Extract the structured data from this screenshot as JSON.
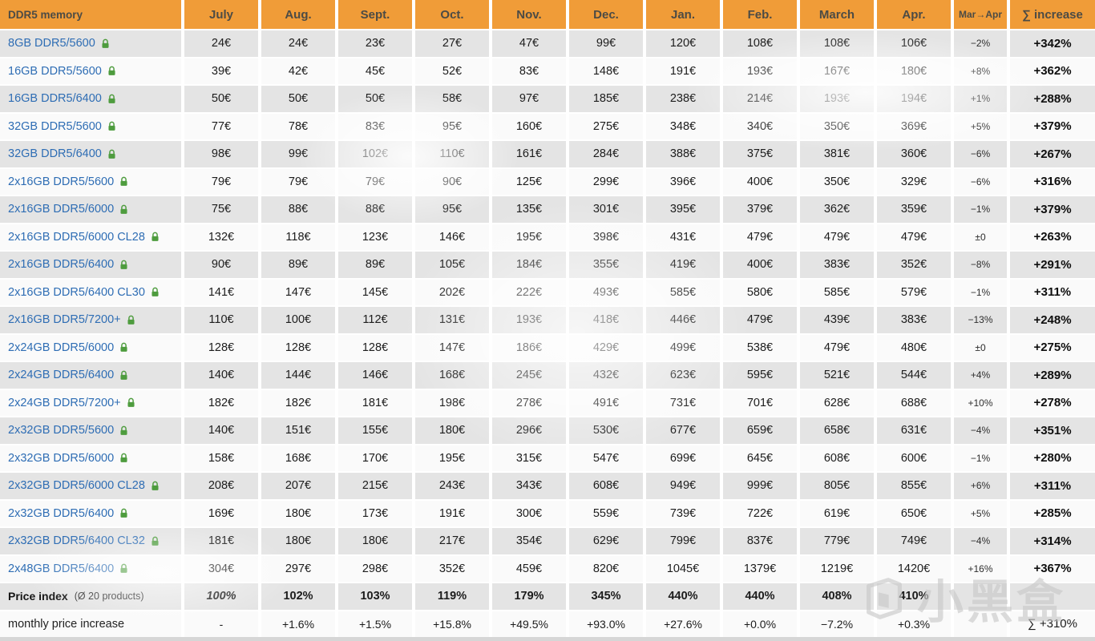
{
  "chart_data": {
    "type": "table",
    "first_column_header": "DDR5 memory",
    "months": [
      "July",
      "Aug.",
      "Sept.",
      "Oct.",
      "Nov.",
      "Dec.",
      "Jan.",
      "Feb.",
      "March",
      "Apr."
    ],
    "change_column_header": "Mar→Apr",
    "sum_column_header": "∑ increase",
    "products": [
      {
        "name": "8GB DDR5/5600",
        "prices": [
          "24€",
          "24€",
          "23€",
          "27€",
          "47€",
          "99€",
          "120€",
          "108€",
          "108€",
          "106€"
        ],
        "mar_apr": "−2%",
        "sum_increase": "+342%"
      },
      {
        "name": "16GB DDR5/5600",
        "prices": [
          "39€",
          "42€",
          "45€",
          "52€",
          "83€",
          "148€",
          "191€",
          "193€",
          "167€",
          "180€"
        ],
        "mar_apr": "+8%",
        "sum_increase": "+362%"
      },
      {
        "name": "16GB DDR5/6400",
        "prices": [
          "50€",
          "50€",
          "50€",
          "58€",
          "97€",
          "185€",
          "238€",
          "214€",
          "193€",
          "194€"
        ],
        "mar_apr": "+1%",
        "sum_increase": "+288%"
      },
      {
        "name": "32GB DDR5/5600",
        "prices": [
          "77€",
          "78€",
          "83€",
          "95€",
          "160€",
          "275€",
          "348€",
          "340€",
          "350€",
          "369€"
        ],
        "mar_apr": "+5%",
        "sum_increase": "+379%"
      },
      {
        "name": "32GB DDR5/6400",
        "prices": [
          "98€",
          "99€",
          "102€",
          "110€",
          "161€",
          "284€",
          "388€",
          "375€",
          "381€",
          "360€"
        ],
        "mar_apr": "−6%",
        "sum_increase": "+267%"
      },
      {
        "name": "2x16GB DDR5/5600",
        "prices": [
          "79€",
          "79€",
          "79€",
          "90€",
          "125€",
          "299€",
          "396€",
          "400€",
          "350€",
          "329€"
        ],
        "mar_apr": "−6%",
        "sum_increase": "+316%"
      },
      {
        "name": "2x16GB DDR5/6000",
        "prices": [
          "75€",
          "88€",
          "88€",
          "95€",
          "135€",
          "301€",
          "395€",
          "379€",
          "362€",
          "359€"
        ],
        "mar_apr": "−1%",
        "sum_increase": "+379%"
      },
      {
        "name": "2x16GB DDR5/6000 CL28",
        "prices": [
          "132€",
          "118€",
          "123€",
          "146€",
          "195€",
          "398€",
          "431€",
          "479€",
          "479€",
          "479€"
        ],
        "mar_apr": "±0",
        "sum_increase": "+263%"
      },
      {
        "name": "2x16GB DDR5/6400",
        "prices": [
          "90€",
          "89€",
          "89€",
          "105€",
          "184€",
          "355€",
          "419€",
          "400€",
          "383€",
          "352€"
        ],
        "mar_apr": "−8%",
        "sum_increase": "+291%"
      },
      {
        "name": "2x16GB DDR5/6400 CL30",
        "prices": [
          "141€",
          "147€",
          "145€",
          "202€",
          "222€",
          "493€",
          "585€",
          "580€",
          "585€",
          "579€"
        ],
        "mar_apr": "−1%",
        "sum_increase": "+311%"
      },
      {
        "name": "2x16GB DDR5/7200+",
        "prices": [
          "110€",
          "100€",
          "112€",
          "131€",
          "193€",
          "418€",
          "446€",
          "479€",
          "439€",
          "383€"
        ],
        "mar_apr": "−13%",
        "sum_increase": "+248%"
      },
      {
        "name": "2x24GB DDR5/6000",
        "prices": [
          "128€",
          "128€",
          "128€",
          "147€",
          "186€",
          "429€",
          "499€",
          "538€",
          "479€",
          "480€"
        ],
        "mar_apr": "±0",
        "sum_increase": "+275%"
      },
      {
        "name": "2x24GB DDR5/6400",
        "prices": [
          "140€",
          "144€",
          "146€",
          "168€",
          "245€",
          "432€",
          "623€",
          "595€",
          "521€",
          "544€"
        ],
        "mar_apr": "+4%",
        "sum_increase": "+289%"
      },
      {
        "name": "2x24GB DDR5/7200+",
        "prices": [
          "182€",
          "182€",
          "181€",
          "198€",
          "278€",
          "491€",
          "731€",
          "701€",
          "628€",
          "688€"
        ],
        "mar_apr": "+10%",
        "sum_increase": "+278%"
      },
      {
        "name": "2x32GB DDR5/5600",
        "prices": [
          "140€",
          "151€",
          "155€",
          "180€",
          "296€",
          "530€",
          "677€",
          "659€",
          "658€",
          "631€"
        ],
        "mar_apr": "−4%",
        "sum_increase": "+351%"
      },
      {
        "name": "2x32GB DDR5/6000",
        "prices": [
          "158€",
          "168€",
          "170€",
          "195€",
          "315€",
          "547€",
          "699€",
          "645€",
          "608€",
          "600€"
        ],
        "mar_apr": "−1%",
        "sum_increase": "+280%"
      },
      {
        "name": "2x32GB DDR5/6000 CL28",
        "prices": [
          "208€",
          "207€",
          "215€",
          "243€",
          "343€",
          "608€",
          "949€",
          "999€",
          "805€",
          "855€"
        ],
        "mar_apr": "+6%",
        "sum_increase": "+311%"
      },
      {
        "name": "2x32GB DDR5/6400",
        "prices": [
          "169€",
          "180€",
          "173€",
          "191€",
          "300€",
          "559€",
          "739€",
          "722€",
          "619€",
          "650€"
        ],
        "mar_apr": "+5%",
        "sum_increase": "+285%"
      },
      {
        "name": "2x32GB DDR5/6400 CL32",
        "prices": [
          "181€",
          "180€",
          "180€",
          "217€",
          "354€",
          "629€",
          "799€",
          "837€",
          "779€",
          "749€"
        ],
        "mar_apr": "−4%",
        "sum_increase": "+314%"
      },
      {
        "name": "2x48GB DDR5/6400",
        "prices": [
          "304€",
          "297€",
          "298€",
          "352€",
          "459€",
          "820€",
          "1045€",
          "1379€",
          "1219€",
          "1420€"
        ],
        "mar_apr": "+16%",
        "sum_increase": "+367%"
      }
    ],
    "price_index": {
      "label": "Price index",
      "note": "(Ø 20 products)",
      "values": [
        "100%",
        "102%",
        "103%",
        "119%",
        "179%",
        "345%",
        "440%",
        "440%",
        "408%",
        "410%"
      ],
      "mar_apr": "",
      "sum": ""
    },
    "monthly_increase": {
      "label": "monthly price increase",
      "values": [
        "-",
        "+1.6%",
        "+1.5%",
        "+15.8%",
        "+49.5%",
        "+93.0%",
        "+27.6%",
        "+0.0%",
        "−7.2%",
        "+0.3%"
      ],
      "mar_apr": "",
      "sum": "∑ +310%"
    }
  },
  "watermark": {
    "text": "小黑盒"
  },
  "colors": {
    "header_bg": "#F09C38",
    "header_text": "#4C4B45",
    "row_gray": "#E4E4E4",
    "row_white": "#FAFAFA",
    "link_blue": "#2E6DB4",
    "lock_green": "#4E9C3E",
    "text": "#1C1C1C",
    "strip": "#D6D6D6",
    "watermark": "#C8C8C8"
  }
}
